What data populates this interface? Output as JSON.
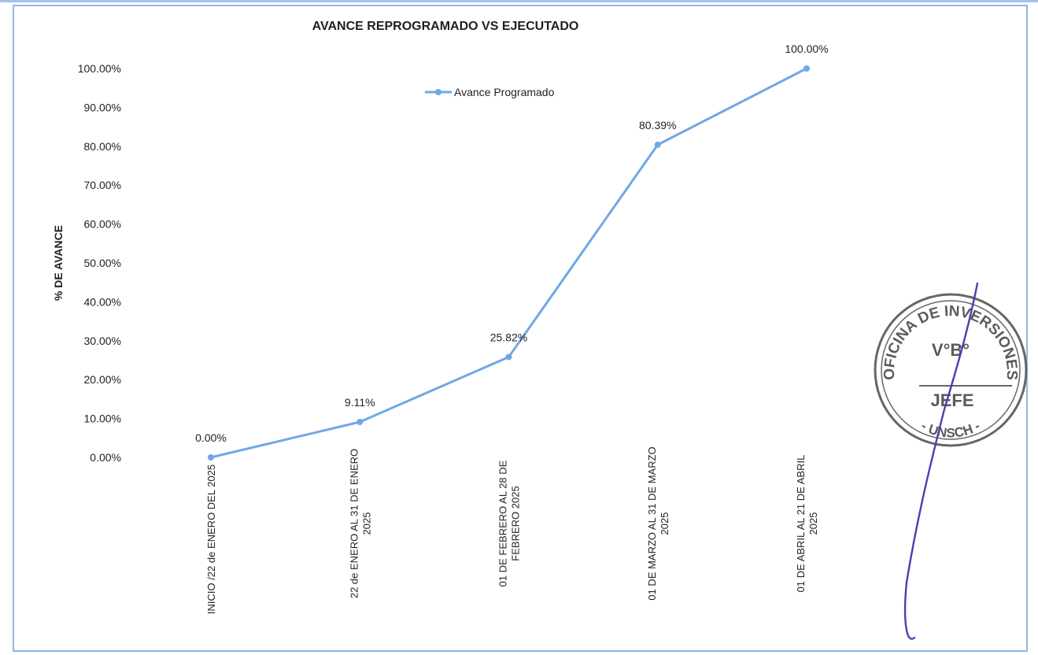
{
  "chart_data": {
    "type": "line",
    "title": "AVANCE REPROGRAMADO VS EJECUTADO",
    "ylabel": "% DE AVANCE",
    "xlabel": "",
    "ylim": [
      0,
      100
    ],
    "y_ticks": [
      "0.00%",
      "10.00%",
      "20.00%",
      "30.00%",
      "40.00%",
      "50.00%",
      "60.00%",
      "70.00%",
      "80.00%",
      "90.00%",
      "100.00%"
    ],
    "categories": [
      [
        "INICIO /22 de ENERO DEL 2025"
      ],
      [
        "22 de ENERO AL 31 DE ENERO",
        "2025"
      ],
      [
        "01 DE FEBRERO AL 28 DE",
        "FEBRERO 2025"
      ],
      [
        "01 DE MARZO AL 31 DE MARZO",
        "2025"
      ],
      [
        "01 DE ABRIL AL 21 DE ABRIL",
        "2025"
      ]
    ],
    "series": [
      {
        "name": "Avance Programado",
        "values": [
          0.0,
          9.11,
          25.82,
          80.39,
          100.0
        ],
        "labels": [
          "0.00%",
          "9.11%",
          "25.82%",
          "80.39%",
          "100.00%"
        ],
        "color": "#6fa8e4"
      }
    ],
    "legend_position": "top-center",
    "grid": false
  },
  "stamp": {
    "lines": [
      "OFICINA",
      "DE INVERSIONES",
      "V°B°",
      "JEFE",
      "UNSCH"
    ],
    "color": "#5b5b5b"
  },
  "signature": {
    "color": "#4a3fb0"
  }
}
